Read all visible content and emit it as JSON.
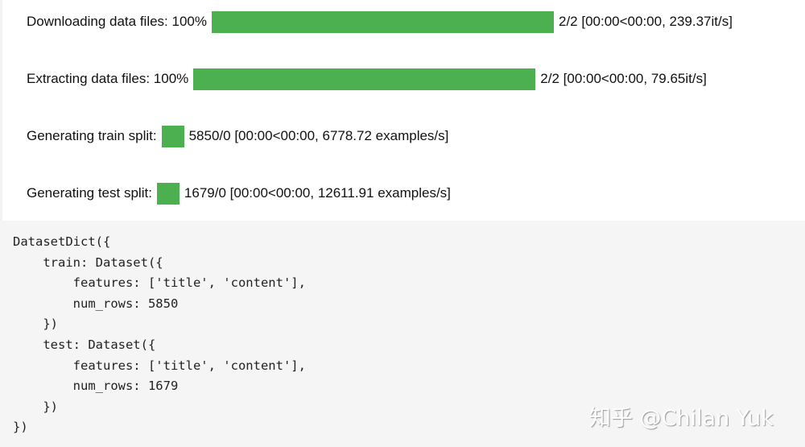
{
  "progress": [
    {
      "label": "Downloading data files: 100%",
      "percent": 100,
      "stats": "2/2 [00:00<00:00, 239.37it/s]"
    },
    {
      "label": "Extracting data files: 100%",
      "percent": 100,
      "stats": "2/2 [00:00<00:00, 79.65it/s]"
    },
    {
      "label": "Generating train split:",
      "stats": "5850/0 [00:00<00:00, 6778.72 examples/s]"
    },
    {
      "label": "Generating test split:",
      "stats": "1679/0 [00:00<00:00, 12611.91 examples/s]"
    }
  ],
  "bar_color": "#4caf50",
  "output_code": "DatasetDict({\n    train: Dataset({\n        features: ['title', 'content'],\n        num_rows: 5850\n    })\n    test: Dataset({\n        features: ['title', 'content'],\n        num_rows: 1679\n    })\n})",
  "watermark": "知乎 @Chilan Yuk"
}
